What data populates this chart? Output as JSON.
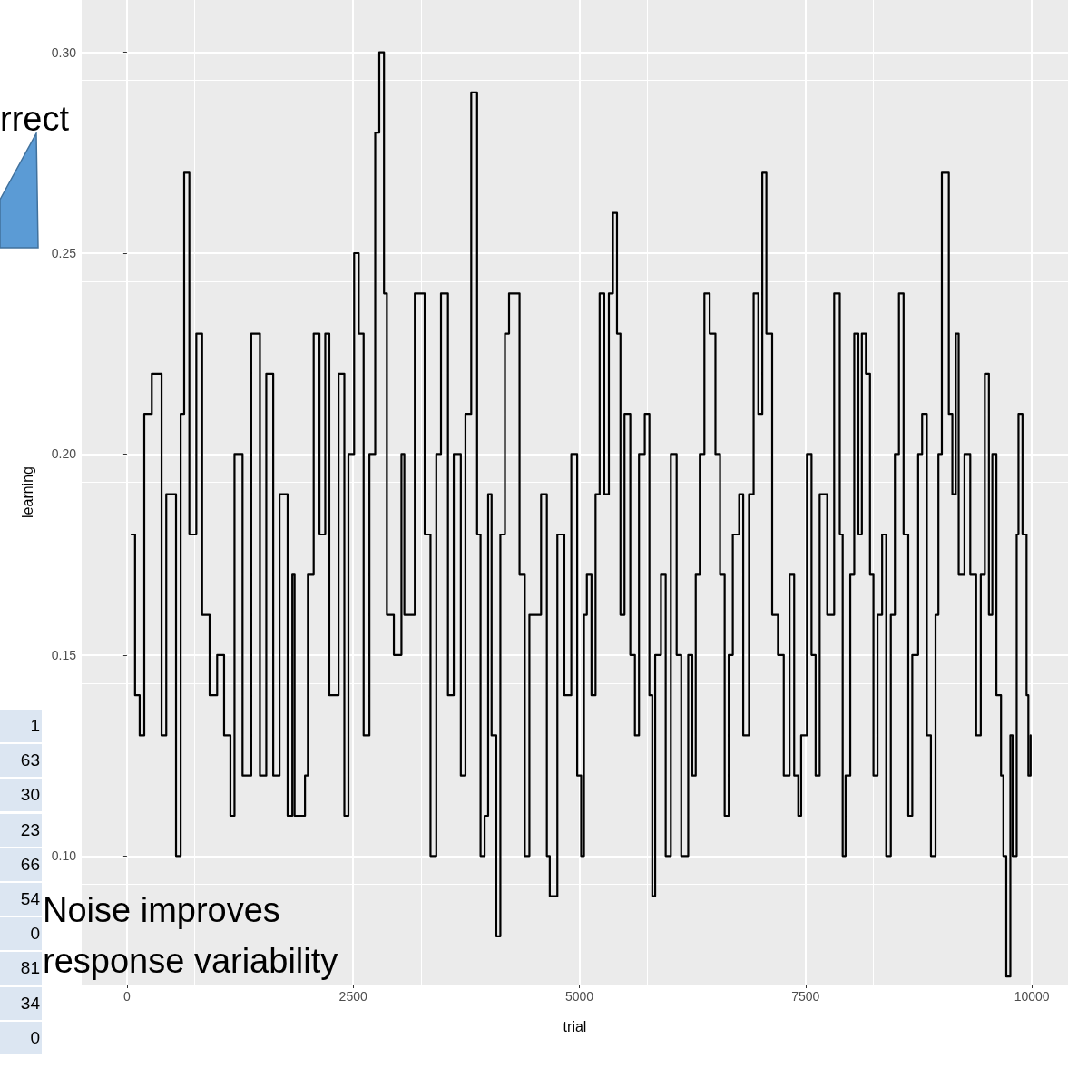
{
  "chart_data": {
    "type": "step",
    "xlabel": "trial",
    "ylabel": "learning",
    "annotations": [
      "rrect",
      "Noise improves response variability",
      "1",
      "63",
      "30",
      "23",
      "66",
      "54",
      "0",
      "81",
      "34",
      "0"
    ],
    "xlim": [
      -500,
      10400
    ],
    "ylim": [
      0.068,
      0.313
    ],
    "xticks": [
      0,
      2500,
      5000,
      7500,
      10000
    ],
    "yticks": [
      {
        "value": 0.1,
        "label": "0.10"
      },
      {
        "value": 0.15,
        "label": "0.15"
      },
      {
        "value": 0.2,
        "label": "0.20"
      },
      {
        "value": 0.25,
        "label": "0.25"
      },
      {
        "value": 0.3,
        "label": "0.30"
      }
    ],
    "grid": true,
    "marker": "none",
    "line_style": "solid",
    "series": [
      {
        "color": "#000000",
        "x": [
          51,
          90,
          141,
          192,
          275,
          383,
          435,
          543,
          594,
          633,
          690,
          767,
          831,
          914,
          997,
          1074,
          1144,
          1189,
          1278,
          1374,
          1470,
          1540,
          1617,
          1687,
          1776,
          1828,
          1853,
          1968,
          2000,
          2064,
          2128,
          2192,
          2237,
          2339,
          2403,
          2448,
          2511,
          2562,
          2616,
          2680,
          2744,
          2789,
          2822,
          2841,
          2873,
          2950,
          3034,
          3066,
          3182,
          3291,
          3355,
          3419,
          3471,
          3548,
          3612,
          3690,
          3741,
          3805,
          3870,
          3908,
          3953,
          3992,
          4030,
          4082,
          4127,
          4178,
          4223,
          4288,
          4339,
          4397,
          4448,
          4577,
          4641,
          4673,
          4757,
          4834,
          4911,
          4976,
          5020,
          5051,
          5083,
          5134,
          5179,
          5224,
          5275,
          5326,
          5371,
          5416,
          5454,
          5499,
          5563,
          5614,
          5659,
          5723,
          5774,
          5806,
          5838,
          5902,
          5954,
          6011,
          6075,
          6126,
          6203,
          6248,
          6286,
          6331,
          6382,
          6440,
          6504,
          6555,
          6606,
          6651,
          6696,
          6766,
          6811,
          6875,
          6926,
          6978,
          7022,
          7067,
          7131,
          7195,
          7259,
          7323,
          7374,
          7419,
          7451,
          7515,
          7566,
          7611,
          7656,
          7739,
          7816,
          7878,
          7910,
          7942,
          7994,
          8038,
          8083,
          8122,
          8167,
          8212,
          8250,
          8295,
          8346,
          8391,
          8442,
          8487,
          8532,
          8583,
          8635,
          8679,
          8744,
          8788,
          8840,
          8885,
          8936,
          8968,
          9006,
          9032,
          9083,
          9122,
          9160,
          9192,
          9256,
          9320,
          9385,
          9436,
          9481,
          9526,
          9564,
          9609,
          9660,
          9686,
          9718,
          9737,
          9763,
          9788,
          9833,
          9853,
          9897,
          9942,
          9962,
          9987
        ],
        "values": [
          0.18,
          0.14,
          0.13,
          0.21,
          0.22,
          0.13,
          0.19,
          0.1,
          0.21,
          0.27,
          0.18,
          0.23,
          0.16,
          0.14,
          0.15,
          0.13,
          0.11,
          0.2,
          0.12,
          0.23,
          0.12,
          0.22,
          0.12,
          0.19,
          0.11,
          0.17,
          0.11,
          0.12,
          0.17,
          0.23,
          0.18,
          0.23,
          0.14,
          0.22,
          0.11,
          0.2,
          0.25,
          0.23,
          0.13,
          0.2,
          0.28,
          0.3,
          0.3,
          0.24,
          0.16,
          0.15,
          0.2,
          0.16,
          0.24,
          0.18,
          0.1,
          0.2,
          0.24,
          0.14,
          0.2,
          0.12,
          0.21,
          0.29,
          0.18,
          0.1,
          0.11,
          0.19,
          0.13,
          0.08,
          0.18,
          0.23,
          0.24,
          0.24,
          0.17,
          0.1,
          0.16,
          0.19,
          0.1,
          0.09,
          0.18,
          0.14,
          0.2,
          0.12,
          0.1,
          0.16,
          0.17,
          0.14,
          0.19,
          0.24,
          0.19,
          0.24,
          0.26,
          0.23,
          0.16,
          0.21,
          0.15,
          0.13,
          0.2,
          0.21,
          0.14,
          0.09,
          0.15,
          0.17,
          0.1,
          0.2,
          0.15,
          0.1,
          0.15,
          0.12,
          0.17,
          0.2,
          0.24,
          0.23,
          0.2,
          0.17,
          0.11,
          0.15,
          0.18,
          0.19,
          0.13,
          0.19,
          0.24,
          0.21,
          0.27,
          0.23,
          0.16,
          0.15,
          0.12,
          0.17,
          0.12,
          0.11,
          0.13,
          0.2,
          0.15,
          0.12,
          0.19,
          0.16,
          0.24,
          0.18,
          0.1,
          0.12,
          0.17,
          0.23,
          0.18,
          0.23,
          0.22,
          0.17,
          0.12,
          0.16,
          0.18,
          0.1,
          0.16,
          0.2,
          0.24,
          0.18,
          0.11,
          0.15,
          0.2,
          0.21,
          0.13,
          0.1,
          0.16,
          0.2,
          0.27,
          0.27,
          0.21,
          0.19,
          0.23,
          0.17,
          0.2,
          0.17,
          0.13,
          0.17,
          0.22,
          0.16,
          0.2,
          0.14,
          0.12,
          0.1,
          0.07,
          0.07,
          0.13,
          0.1,
          0.18,
          0.21,
          0.18,
          0.14,
          0.12,
          0.13
        ]
      }
    ]
  }
}
